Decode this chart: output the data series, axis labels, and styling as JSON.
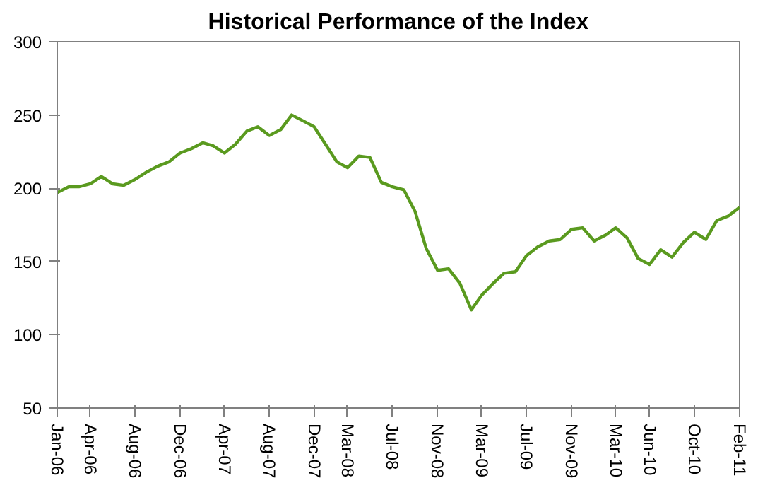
{
  "chart_data": {
    "type": "line",
    "title": "Historical Performance of the Index",
    "x": [
      "2006-01",
      "2006-02",
      "2006-03",
      "2006-04",
      "2006-05",
      "2006-06",
      "2006-07",
      "2006-08",
      "2006-09",
      "2006-10",
      "2006-11",
      "2006-12",
      "2007-01",
      "2007-02",
      "2007-03",
      "2007-04",
      "2007-05",
      "2007-06",
      "2007-07",
      "2007-08",
      "2007-09",
      "2007-10",
      "2007-11",
      "2007-12",
      "2008-01",
      "2008-02",
      "2008-03",
      "2008-04",
      "2008-05",
      "2008-06",
      "2008-07",
      "2008-08",
      "2008-09",
      "2008-10",
      "2008-11",
      "2008-12",
      "2009-01",
      "2009-02",
      "2009-03",
      "2009-04",
      "2009-05",
      "2009-06",
      "2009-07",
      "2009-08",
      "2009-09",
      "2009-10",
      "2009-11",
      "2009-12",
      "2010-01",
      "2010-02",
      "2010-03",
      "2010-04",
      "2010-05",
      "2010-06",
      "2010-07",
      "2010-08",
      "2010-09",
      "2010-10",
      "2010-11",
      "2010-12",
      "2011-01",
      "2011-02"
    ],
    "series": [
      {
        "color": "#5a9a1f",
        "values": [
          197,
          201,
          201,
          203,
          208,
          203,
          202,
          206,
          211,
          215,
          218,
          224,
          227,
          231,
          229,
          224,
          230,
          239,
          242,
          236,
          240,
          250,
          246,
          242,
          230,
          218,
          214,
          222,
          221,
          204,
          201,
          199,
          184,
          159,
          144,
          145,
          135,
          117,
          127,
          135,
          142,
          143,
          154,
          160,
          164,
          165,
          172,
          173,
          164,
          168,
          173,
          166,
          152,
          148,
          158,
          153,
          163,
          170,
          165,
          178,
          181,
          187
        ]
      }
    ],
    "xlim": [
      "2006-01",
      "2011-02"
    ],
    "xticks": [
      {
        "value": "2006-01",
        "label": "Jan-06"
      },
      {
        "value": "2006-04",
        "label": "Apr-06"
      },
      {
        "value": "2006-08",
        "label": "Aug-06"
      },
      {
        "value": "2006-12",
        "label": "Dec-06"
      },
      {
        "value": "2007-04",
        "label": "Apr-07"
      },
      {
        "value": "2007-08",
        "label": "Aug-07"
      },
      {
        "value": "2007-12",
        "label": "Dec-07"
      },
      {
        "value": "2008-03",
        "label": "Mar-08"
      },
      {
        "value": "2008-07",
        "label": "Jul-08"
      },
      {
        "value": "2008-11",
        "label": "Nov-08"
      },
      {
        "value": "2009-03",
        "label": "Mar-09"
      },
      {
        "value": "2009-07",
        "label": "Jul-09"
      },
      {
        "value": "2009-11",
        "label": "Nov-09"
      },
      {
        "value": "2010-03",
        "label": "Mar-10"
      },
      {
        "value": "2010-06",
        "label": "Jun-10"
      },
      {
        "value": "2010-10",
        "label": "Oct-10"
      },
      {
        "value": "2011-02",
        "label": "Feb-11"
      }
    ],
    "ylim": [
      50,
      300
    ],
    "yticks": [
      50,
      100,
      150,
      200,
      250,
      300
    ],
    "grid": false,
    "marker": "none",
    "line_style": "solid"
  }
}
